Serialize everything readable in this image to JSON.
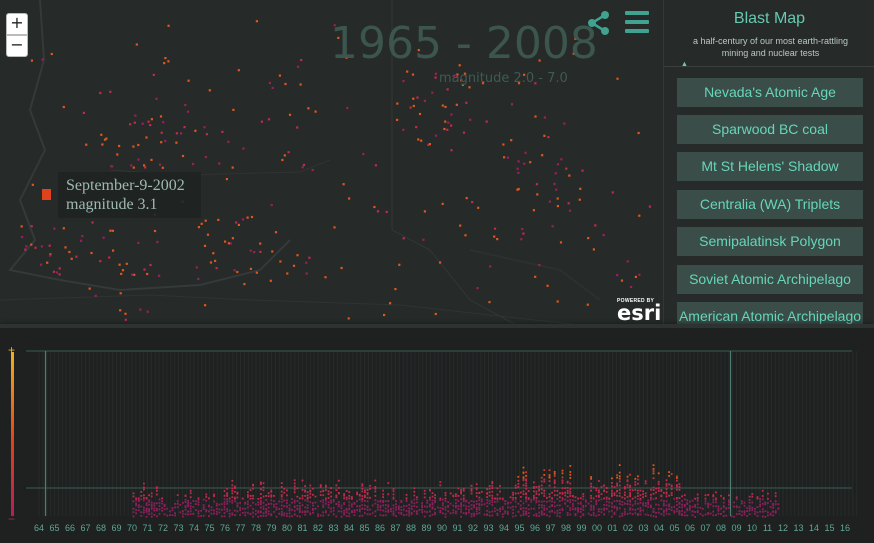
{
  "map": {
    "year_range": "1965 - 2008",
    "magnitude_range": "magnitude 2.0 - 7.0",
    "zoom_in": "+",
    "zoom_out": "−",
    "tooltip": {
      "date": "September-9-2002",
      "magnitude": "magnitude 3.1"
    },
    "esri": {
      "powered_by": "POWERED BY",
      "logo": "esri"
    }
  },
  "panel": {
    "title": "Blast Map",
    "subtitle": "a half-century of our most earth-rattling mining and nuclear tests",
    "stories": [
      "Nevada's Atomic Age",
      "Sparwood BC coal",
      "Mt St Helens' Shadow",
      "Centralia (WA) Triplets",
      "Semipalatinsk Polygon",
      "Soviet Atomic Archipelago",
      "American Atomic Archipelago"
    ]
  },
  "timeline": {
    "year_labels": [
      "64",
      "65",
      "66",
      "67",
      "68",
      "69",
      "70",
      "71",
      "72",
      "73",
      "74",
      "75",
      "76",
      "77",
      "78",
      "79",
      "80",
      "81",
      "82",
      "83",
      "84",
      "85",
      "86",
      "87",
      "88",
      "89",
      "90",
      "91",
      "92",
      "93",
      "94",
      "95",
      "96",
      "97",
      "98",
      "99",
      "00",
      "01",
      "02",
      "03",
      "04",
      "05",
      "06",
      "07",
      "08",
      "09",
      "10",
      "11",
      "12",
      "13",
      "14",
      "15",
      "16"
    ],
    "selected_start": "65",
    "selected_end": "09",
    "magnitude_plus": "+",
    "magnitude_minus": "−"
  },
  "colors": {
    "accent": "#66c9b0",
    "event_high": "#e0421b",
    "event_low": "#b0205a",
    "panel_button": "#3a4d48"
  }
}
